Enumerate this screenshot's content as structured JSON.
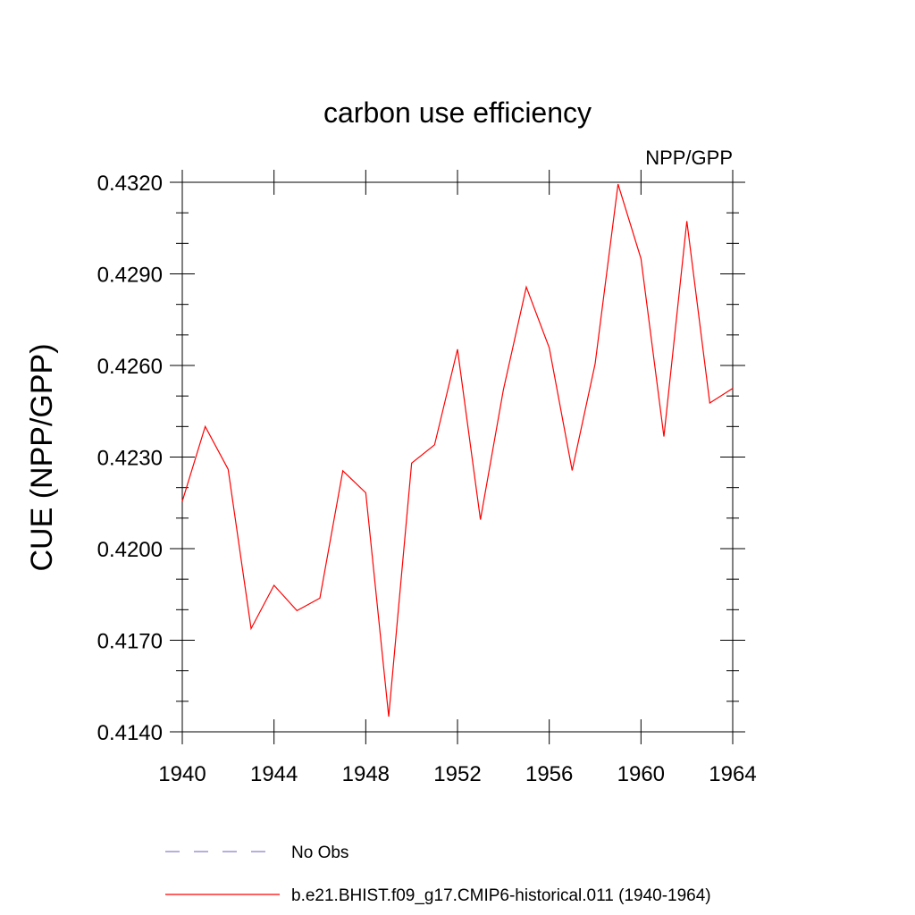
{
  "chart_data": {
    "type": "line",
    "title": "carbon use efficiency",
    "subtitle": "NPP/GPP",
    "xlabel": "",
    "ylabel": "CUE  (NPP/GPP)",
    "xlim": [
      1940,
      1964
    ],
    "ylim": [
      0.414,
      0.432
    ],
    "xticks": [
      "1940",
      "1944",
      "1948",
      "1952",
      "1956",
      "1960",
      "1964"
    ],
    "yticks": [
      "0.4140",
      "0.4170",
      "0.4200",
      "0.4230",
      "0.4260",
      "0.4290",
      "0.4320"
    ],
    "grid": false,
    "legend_position": "bottom",
    "series": [
      {
        "name": "b.e21.BHIST.f09_g17.CMIP6-historical.011 (1940-1964)",
        "color": "#ff0000",
        "style": "solid",
        "x": [
          1940,
          1941,
          1942,
          1943,
          1944,
          1945,
          1946,
          1947,
          1948,
          1949,
          1950,
          1951,
          1952,
          1953,
          1954,
          1955,
          1956,
          1957,
          1958,
          1959,
          1960,
          1961,
          1962,
          1963,
          1964
        ],
        "y": [
          0.42155,
          0.424,
          0.4226,
          0.41738,
          0.4188,
          0.41797,
          0.41838,
          0.42255,
          0.42183,
          0.4145,
          0.4228,
          0.4234,
          0.42653,
          0.42095,
          0.4252,
          0.42857,
          0.42658,
          0.42256,
          0.42605,
          0.43194,
          0.4295,
          0.42367,
          0.43073,
          0.42477,
          0.42525
        ]
      }
    ],
    "legend": [
      {
        "label": "No Obs",
        "color": "#8a7fc8",
        "style": "dashed"
      },
      {
        "label": "b.e21.BHIST.f09_g17.CMIP6-historical.011 (1940-1964)",
        "color": "#ff0000",
        "style": "solid"
      }
    ]
  }
}
